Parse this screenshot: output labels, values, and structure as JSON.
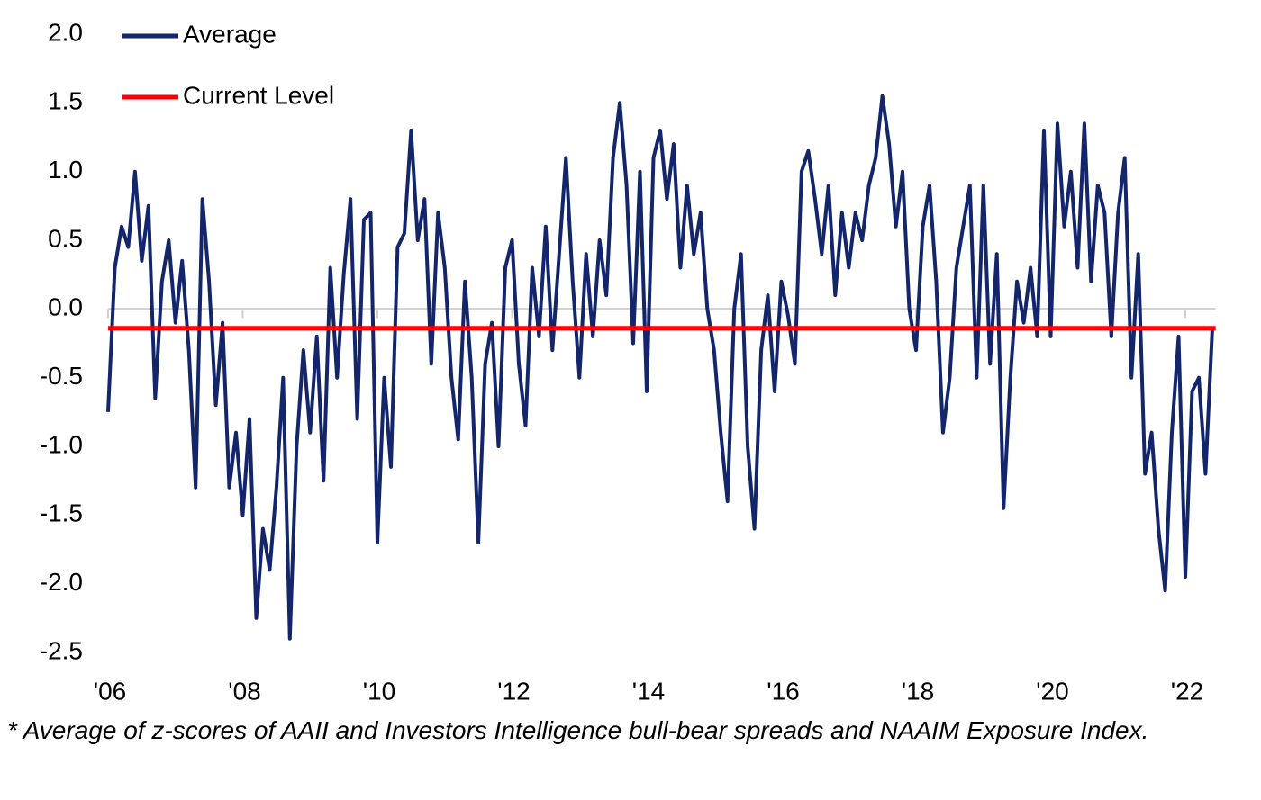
{
  "chart_data": {
    "type": "line",
    "x": [
      2006,
      2006.1,
      2006.2,
      2006.3,
      2006.4,
      2006.5,
      2006.6,
      2006.7,
      2006.8,
      2006.9,
      2007,
      2007.1,
      2007.2,
      2007.3,
      2007.4,
      2007.5,
      2007.6,
      2007.7,
      2007.8,
      2007.9,
      2008,
      2008.1,
      2008.2,
      2008.3,
      2008.4,
      2008.5,
      2008.6,
      2008.7,
      2008.8,
      2008.9,
      2009,
      2009.1,
      2009.2,
      2009.3,
      2009.4,
      2009.5,
      2009.6,
      2009.7,
      2009.8,
      2009.9,
      2010,
      2010.1,
      2010.2,
      2010.3,
      2010.4,
      2010.5,
      2010.6,
      2010.7,
      2010.8,
      2010.9,
      2011,
      2011.1,
      2011.2,
      2011.3,
      2011.4,
      2011.5,
      2011.6,
      2011.7,
      2011.8,
      2011.9,
      2012,
      2012.1,
      2012.2,
      2012.3,
      2012.4,
      2012.5,
      2012.6,
      2012.7,
      2012.8,
      2012.9,
      2013,
      2013.1,
      2013.2,
      2013.3,
      2013.4,
      2013.5,
      2013.6,
      2013.7,
      2013.8,
      2013.9,
      2014,
      2014.1,
      2014.2,
      2014.3,
      2014.4,
      2014.5,
      2014.6,
      2014.7,
      2014.8,
      2014.9,
      2015,
      2015.1,
      2015.2,
      2015.3,
      2015.4,
      2015.5,
      2015.6,
      2015.7,
      2015.8,
      2015.9,
      2016,
      2016.1,
      2016.2,
      2016.3,
      2016.4,
      2016.5,
      2016.6,
      2016.7,
      2016.8,
      2016.9,
      2017,
      2017.1,
      2017.2,
      2017.3,
      2017.4,
      2017.5,
      2017.6,
      2017.7,
      2017.8,
      2017.9,
      2018,
      2018.1,
      2018.2,
      2018.3,
      2018.4,
      2018.5,
      2018.6,
      2018.7,
      2018.8,
      2018.9,
      2019,
      2019.1,
      2019.2,
      2019.3,
      2019.4,
      2019.5,
      2019.6,
      2019.7,
      2019.8,
      2019.9,
      2020,
      2020.1,
      2020.2,
      2020.3,
      2020.4,
      2020.5,
      2020.6,
      2020.7,
      2020.8,
      2020.9,
      2021,
      2021.1,
      2021.2,
      2021.3,
      2021.4,
      2021.5,
      2021.6,
      2021.7,
      2021.8,
      2021.9,
      2022,
      2022.1,
      2022.2,
      2022.3,
      2022.4
    ],
    "series": [
      {
        "name": "Average",
        "color": "#13266b",
        "values": [
          -0.75,
          0.3,
          0.6,
          0.45,
          1.0,
          0.35,
          0.75,
          -0.65,
          0.2,
          0.5,
          -0.1,
          0.35,
          -0.3,
          -1.3,
          0.8,
          0.2,
          -0.7,
          -0.1,
          -1.3,
          -0.9,
          -1.5,
          -0.8,
          -2.25,
          -1.6,
          -1.9,
          -1.3,
          -0.5,
          -2.4,
          -1.0,
          -0.3,
          -0.9,
          -0.2,
          -1.25,
          0.3,
          -0.5,
          0.25,
          0.8,
          -0.8,
          0.65,
          0.7,
          -1.7,
          -0.5,
          -1.15,
          0.45,
          0.55,
          1.3,
          0.5,
          0.8,
          -0.4,
          0.7,
          0.3,
          -0.5,
          -0.95,
          0.2,
          -0.5,
          -1.7,
          -0.4,
          -0.1,
          -1.0,
          0.3,
          0.5,
          -0.4,
          -0.85,
          0.3,
          -0.2,
          0.6,
          -0.3,
          0.4,
          1.1,
          0.2,
          -0.5,
          0.4,
          -0.2,
          0.5,
          0.1,
          1.1,
          1.5,
          0.9,
          -0.25,
          1.0,
          -0.6,
          1.1,
          1.3,
          0.8,
          1.2,
          0.3,
          0.9,
          0.4,
          0.7,
          0.0,
          -0.3,
          -0.9,
          -1.4,
          0.0,
          0.4,
          -1.0,
          -1.6,
          -0.3,
          0.1,
          -0.6,
          0.2,
          -0.05,
          -0.4,
          1.0,
          1.15,
          0.8,
          0.4,
          0.9,
          0.1,
          0.7,
          0.3,
          0.7,
          0.5,
          0.9,
          1.1,
          1.55,
          1.2,
          0.6,
          1.0,
          0.0,
          -0.3,
          0.6,
          0.9,
          0.2,
          -0.9,
          -0.5,
          0.3,
          0.6,
          0.9,
          -0.5,
          0.9,
          -0.4,
          0.4,
          -1.45,
          -0.5,
          0.2,
          -0.1,
          0.3,
          -0.2,
          1.3,
          -0.2,
          1.35,
          0.6,
          1.0,
          0.3,
          1.35,
          0.2,
          0.9,
          0.7,
          -0.2,
          0.7,
          1.1,
          -0.5,
          0.4,
          -1.2,
          -0.9,
          -1.6,
          -2.05,
          -0.9,
          -0.2,
          -1.95,
          -0.6,
          -0.5,
          -1.2,
          -0.15
        ]
      }
    ],
    "reference_line": {
      "name": "Current Level",
      "color": "#ff0000",
      "value": -0.14
    },
    "xlim": [
      2006,
      2022.45
    ],
    "xticks": [
      {
        "value": 2006,
        "label": "'06"
      },
      {
        "value": 2008,
        "label": "'08"
      },
      {
        "value": 2010,
        "label": "'10"
      },
      {
        "value": 2012,
        "label": "'12"
      },
      {
        "value": 2014,
        "label": "'14"
      },
      {
        "value": 2016,
        "label": "'16"
      },
      {
        "value": 2018,
        "label": "'18"
      },
      {
        "value": 2020,
        "label": "'20"
      },
      {
        "value": 2022,
        "label": "'22"
      }
    ],
    "ylim": [
      -2.5,
      2
    ],
    "yticks": [
      {
        "value": 2,
        "label": "2.0"
      },
      1.5,
      {
        "value": 1,
        "label": "1.0"
      },
      0.5,
      {
        "value": 0,
        "label": "0.0"
      },
      -0.5,
      {
        "value": -1,
        "label": "-1.0"
      },
      -1.5,
      {
        "value": -2,
        "label": "-2.0"
      },
      -2.5
    ],
    "footnote": "* Average of z-scores of AAII and Investors Intelligence bull-bear spreads and NAAIM Exposure Index."
  }
}
